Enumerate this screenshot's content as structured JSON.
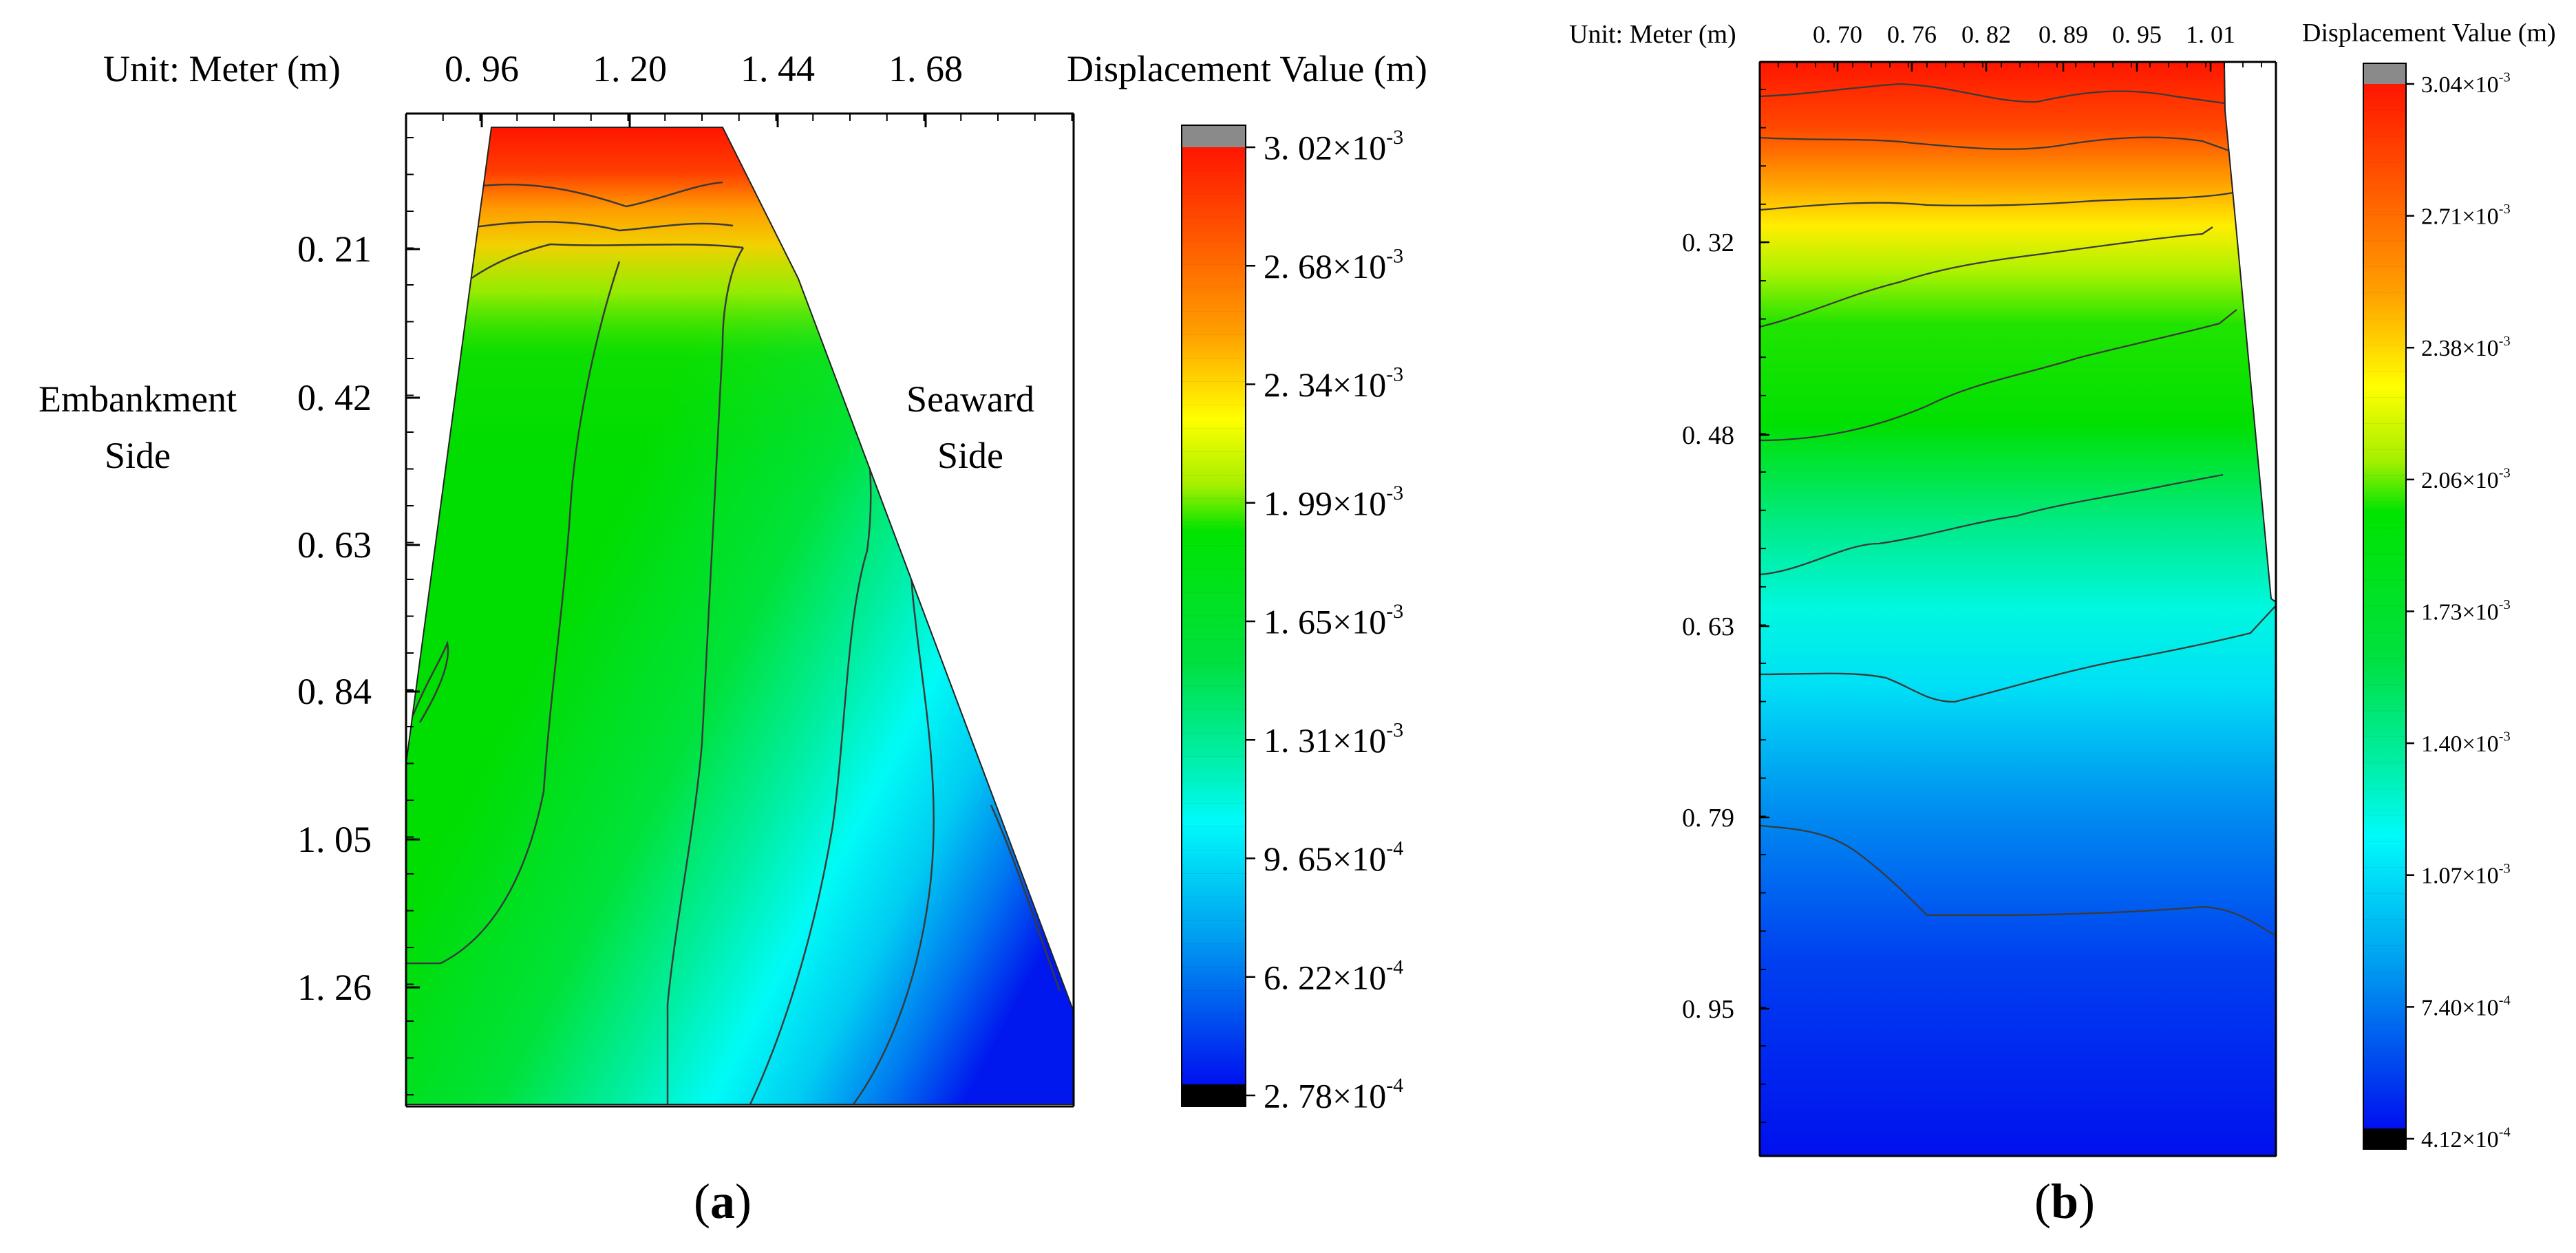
{
  "chart_data": [
    {
      "type": "heatmap",
      "panel_label": "(a)",
      "panel_letter": "a",
      "unit_label": "Unit: Meter (m)",
      "legend_title": "Displacement Value (m)",
      "x_ticks": [
        "0. 96",
        "1. 20",
        "1. 44",
        "1. 68"
      ],
      "y_ticks": [
        "0. 21",
        "0. 42",
        "0. 63",
        "0. 84",
        "1. 05",
        "1. 26"
      ],
      "side_labels": {
        "left": [
          "Embankment",
          "Side"
        ],
        "right": [
          "Seaward",
          "Side"
        ]
      },
      "colorbar": {
        "min": 0.000278,
        "max": 0.00302,
        "tick_labels": [
          {
            "mantissa": "3. 02",
            "exp": "-3"
          },
          {
            "mantissa": "2. 68",
            "exp": "-3"
          },
          {
            "mantissa": "2. 34",
            "exp": "-3"
          },
          {
            "mantissa": "1. 99",
            "exp": "-3"
          },
          {
            "mantissa": "1. 65",
            "exp": "-3"
          },
          {
            "mantissa": "1. 31",
            "exp": "-3"
          },
          {
            "mantissa": "9. 65",
            "exp": "-4"
          },
          {
            "mantissa": "6. 22",
            "exp": "-4"
          },
          {
            "mantissa": "2. 78",
            "exp": "-4"
          }
        ]
      },
      "field_description": "Displacement largest at top crest (~3.0e-3 m), decreasing toward bottom-right seaward toe (~2.8e-4 m)"
    },
    {
      "type": "heatmap",
      "panel_label": "(b)",
      "panel_letter": "b",
      "unit_label": "Unit: Meter (m)",
      "legend_title": "Displacement Value (m)",
      "x_ticks": [
        "0. 70",
        "0. 76",
        "0. 82",
        "0. 89",
        "0. 95",
        "1. 01"
      ],
      "y_ticks": [
        "0. 32",
        "0. 48",
        "0. 63",
        "0. 79",
        "0. 95"
      ],
      "colorbar": {
        "min": 0.000412,
        "max": 0.00304,
        "tick_labels": [
          {
            "mantissa": "3.04",
            "exp": "-3"
          },
          {
            "mantissa": "2.71",
            "exp": "-3"
          },
          {
            "mantissa": "2.38",
            "exp": "-3"
          },
          {
            "mantissa": "2.06",
            "exp": "-3"
          },
          {
            "mantissa": "1.73",
            "exp": "-3"
          },
          {
            "mantissa": "1.40",
            "exp": "-3"
          },
          {
            "mantissa": "1.07",
            "exp": "-3"
          },
          {
            "mantissa": "7.40",
            "exp": "-4"
          },
          {
            "mantissa": "4.12",
            "exp": "-4"
          }
        ]
      },
      "field_description": "Displacement largest at top (~3.0e-3 m), decreasing with depth to ~4.1e-4 m at bottom"
    }
  ]
}
